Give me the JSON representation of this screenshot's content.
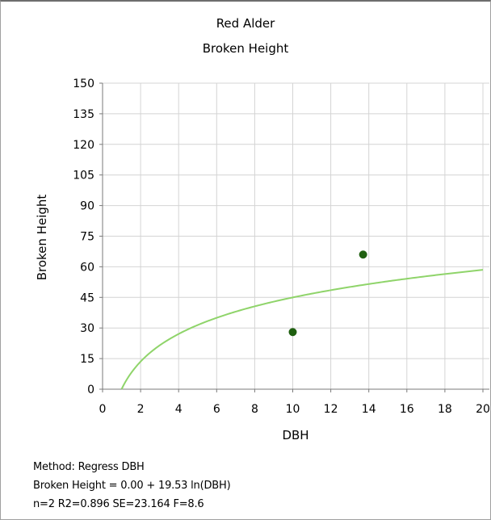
{
  "chart_data": {
    "type": "scatter",
    "title": "Red Alder",
    "subtitle": "Broken Height",
    "xlabel": "DBH",
    "ylabel": "Broken Height",
    "xlim": [
      0,
      20
    ],
    "ylim": [
      0,
      150
    ],
    "x_ticks": [
      0,
      2,
      4,
      6,
      8,
      10,
      12,
      14,
      16,
      18,
      20
    ],
    "y_ticks": [
      0,
      15,
      30,
      45,
      60,
      75,
      90,
      105,
      120,
      135,
      150
    ],
    "grid": true,
    "points": [
      {
        "x": 10.0,
        "y": 28
      },
      {
        "x": 13.7,
        "y": 66
      }
    ],
    "fit": {
      "intercept": 0.0,
      "slope": 19.53,
      "form": "ln",
      "x_range": [
        1,
        20
      ]
    },
    "colors": {
      "points": "#1f5f10",
      "fit": "#8fd46a",
      "grid": "#d4d4d4",
      "axis": "#7a7a7a"
    }
  },
  "stats": {
    "method": "Method: Regress DBH",
    "equation": "Broken Height = 0.00 + 19.53 ln(DBH)",
    "summary": "n=2 R2=0.896 SE=23.164 F=8.6"
  }
}
